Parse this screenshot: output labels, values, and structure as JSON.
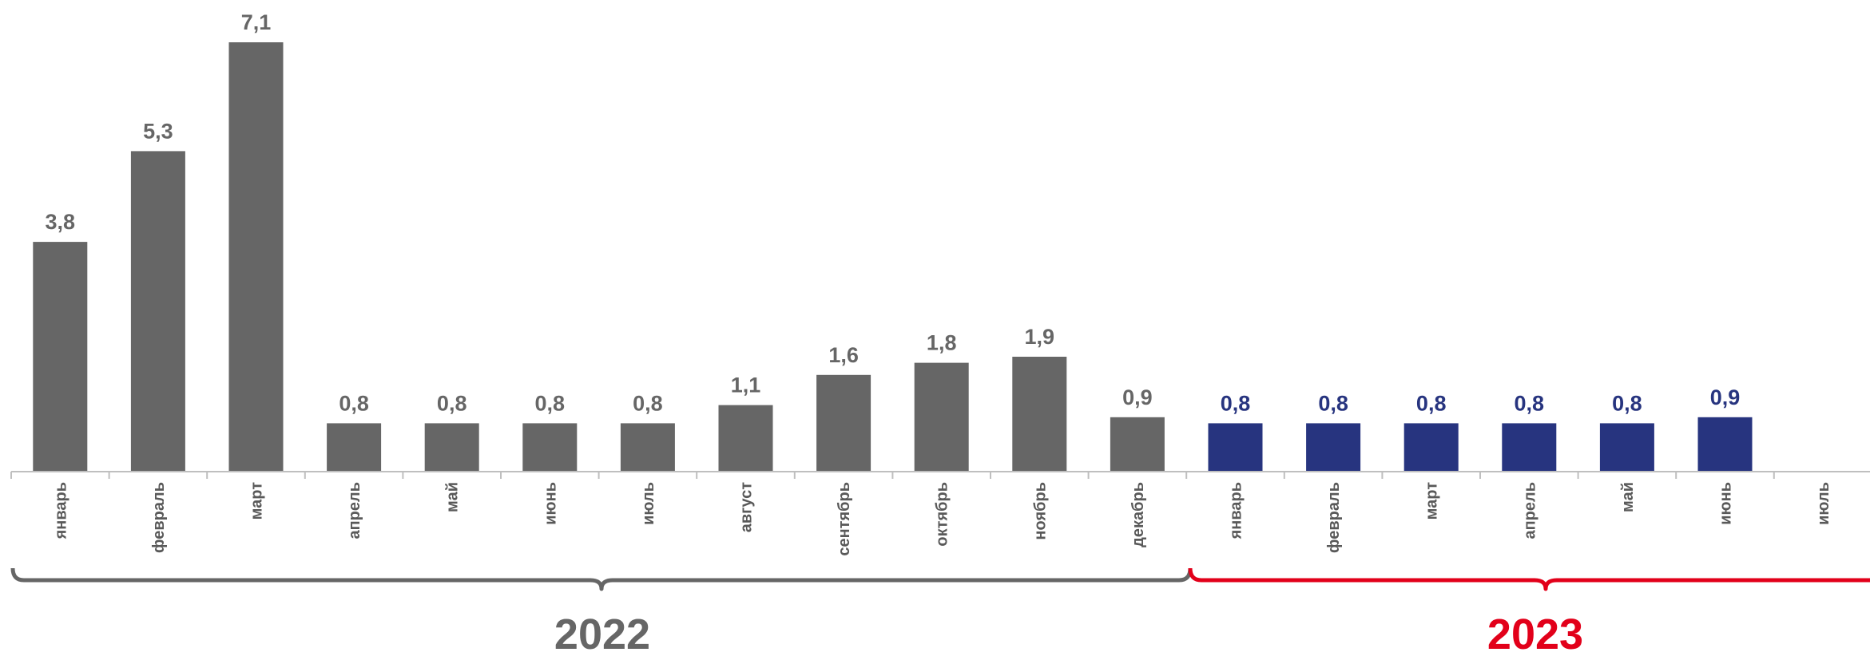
{
  "chart_data": {
    "type": "bar",
    "categories": [
      "январь",
      "февраль",
      "март",
      "апрель",
      "май",
      "июнь",
      "июль",
      "август",
      "сентябрь",
      "октябрь",
      "ноябрь",
      "декабрь",
      "январь",
      "февраль",
      "март",
      "апрель",
      "май",
      "июнь",
      "июль"
    ],
    "values": [
      3.8,
      5.3,
      7.1,
      0.8,
      0.8,
      0.8,
      0.8,
      1.1,
      1.6,
      1.8,
      1.9,
      0.9,
      0.8,
      0.8,
      0.8,
      0.8,
      0.8,
      0.9,
      null
    ],
    "value_labels": [
      "3,8",
      "5,3",
      "7,1",
      "0,8",
      "0,8",
      "0,8",
      "0,8",
      "1,1",
      "1,6",
      "1,8",
      "1,9",
      "0,9",
      "0,8",
      "0,8",
      "0,8",
      "0,8",
      "0,8",
      "0,9",
      ""
    ],
    "groups": [
      {
        "label": "2022",
        "start": 0,
        "end": 11,
        "color": "#666666"
      },
      {
        "label": "2023",
        "start": 12,
        "end": 18,
        "color": "#e2001a"
      }
    ],
    "bar_colors": {
      "2022": "#666666",
      "2023": "#27347f"
    },
    "label_colors": {
      "2022": "#666666",
      "2023": "#27347f"
    },
    "axis_color": "#bfbfbf",
    "ylim": [
      0,
      7.1
    ],
    "grid": false,
    "legend": "none"
  }
}
